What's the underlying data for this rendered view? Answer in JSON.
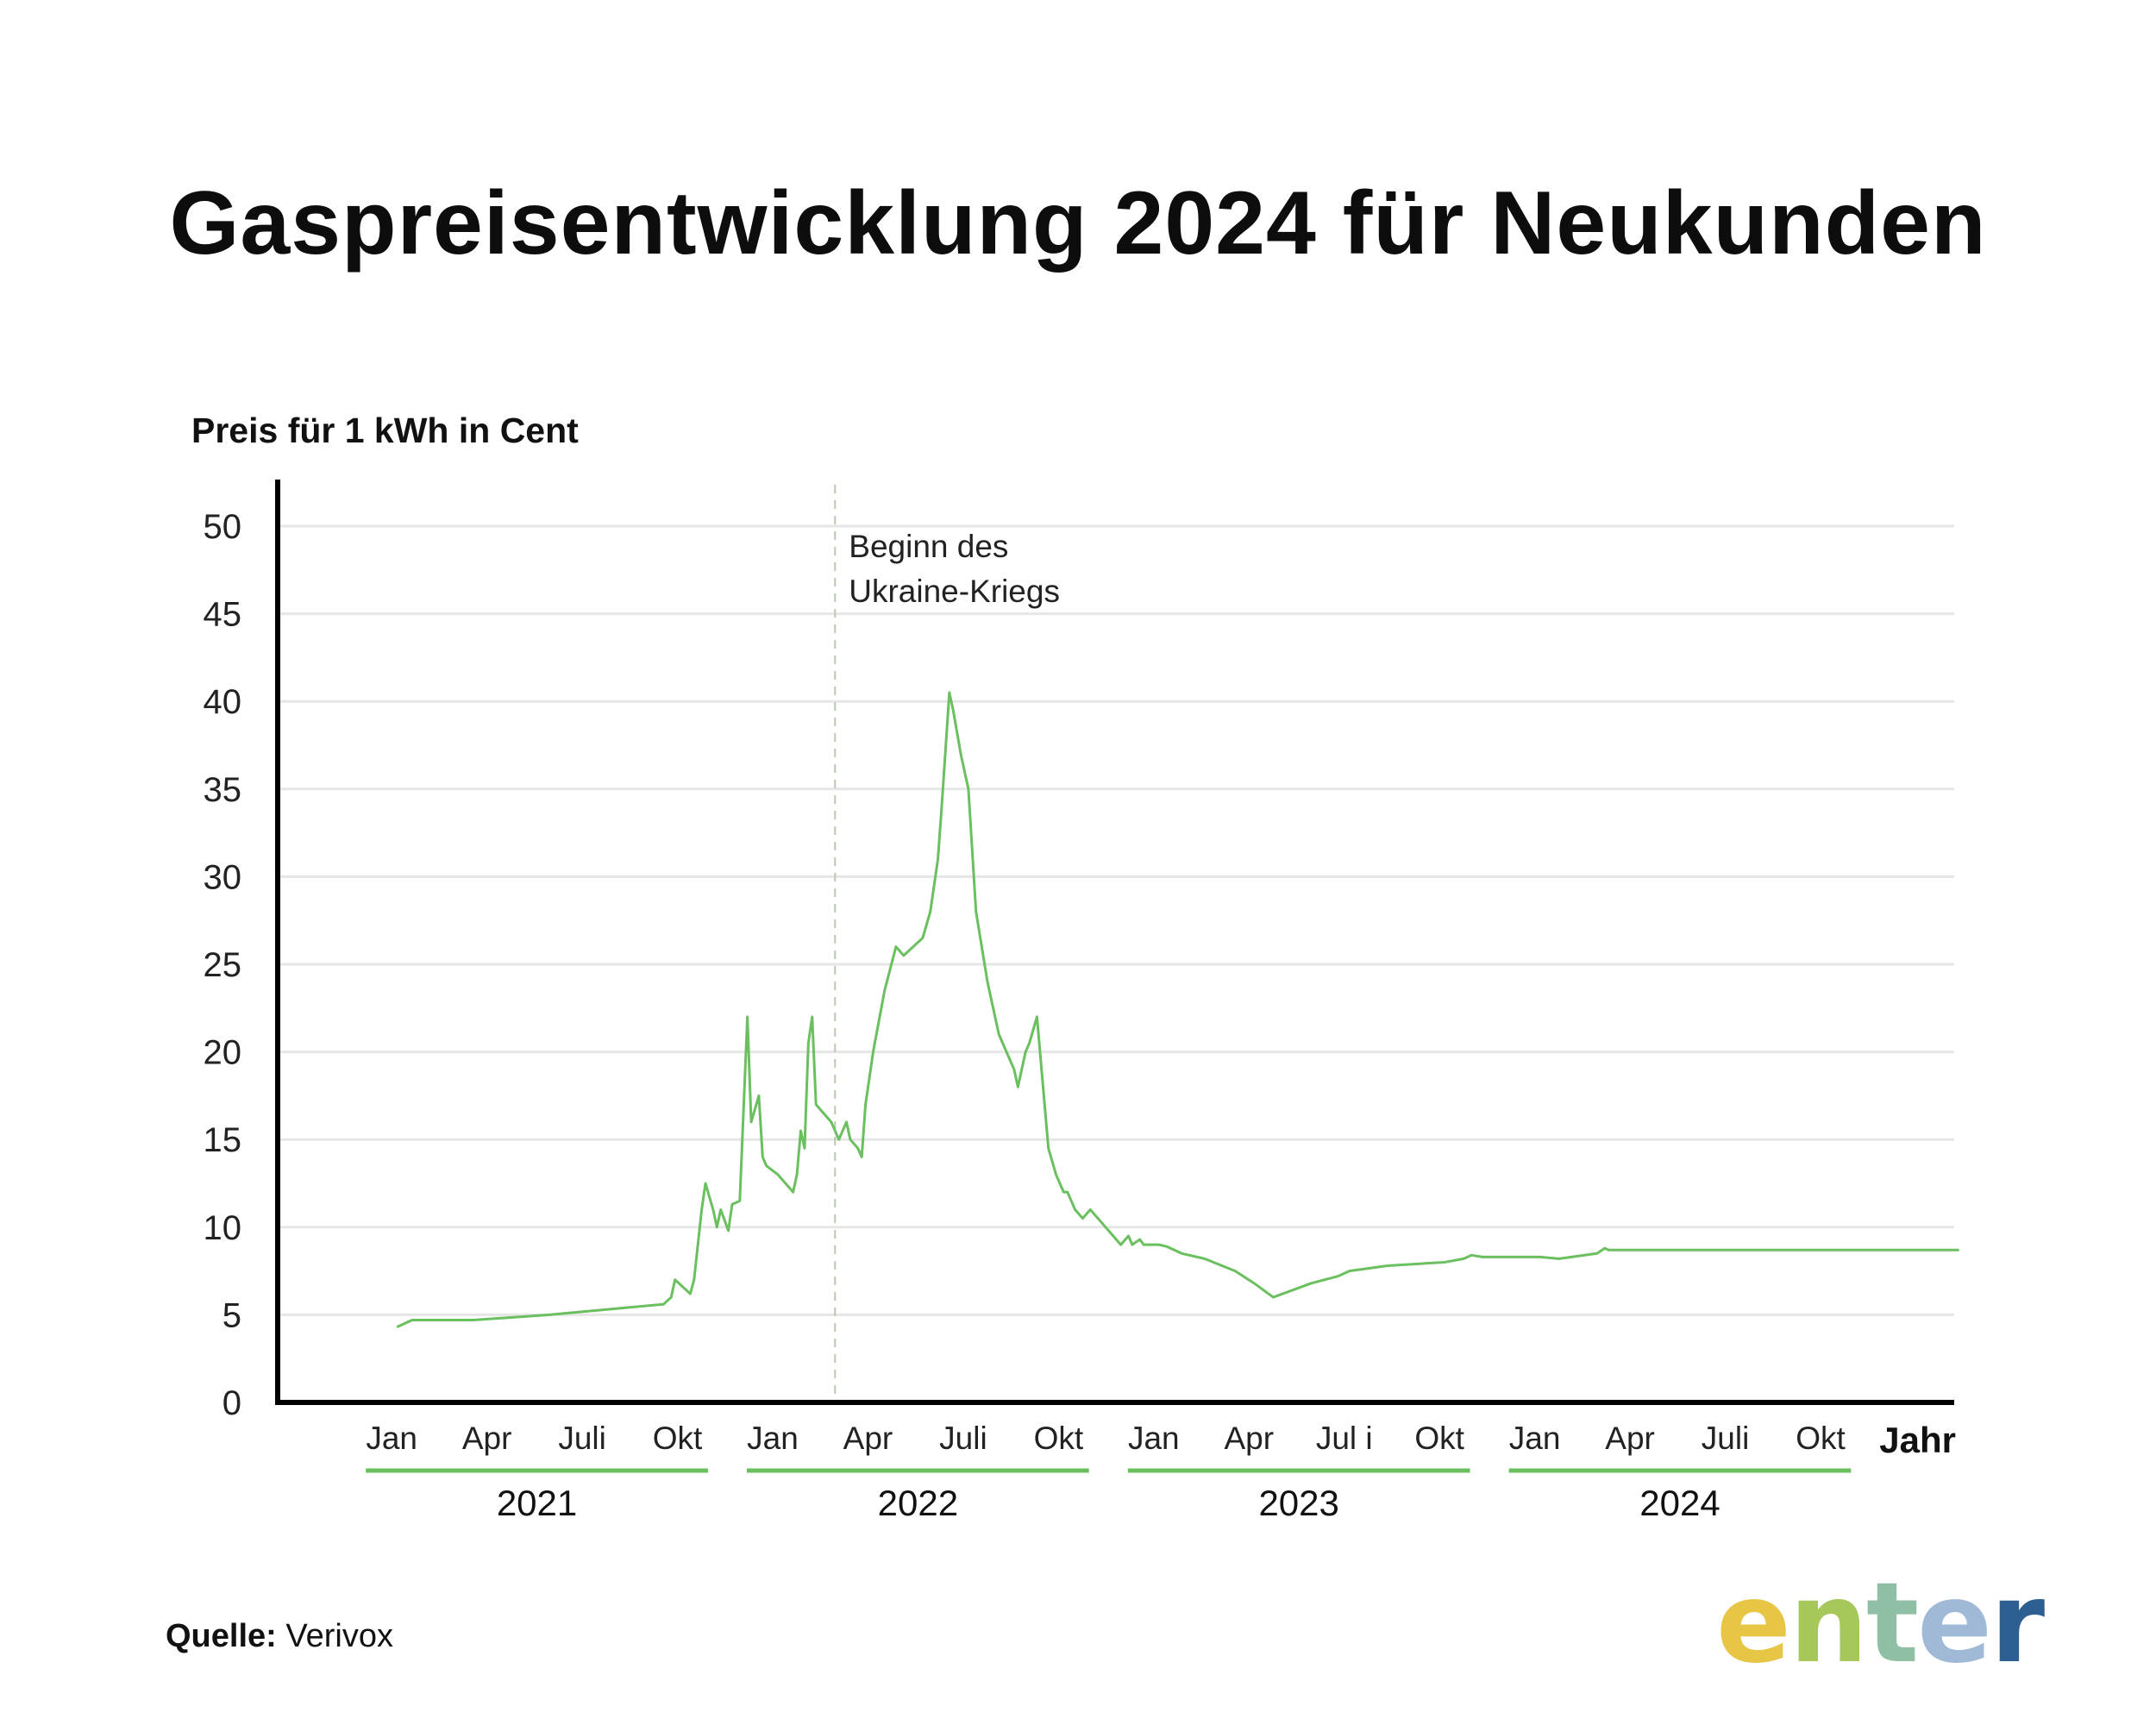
{
  "title": "Gaspreisentwicklung 2024 für Neukunden",
  "source": {
    "label": "Quelle:",
    "value": "Verivox"
  },
  "logo": {
    "text": "enter",
    "letters": [
      "e",
      "n",
      "t",
      "e",
      "r"
    ],
    "colors": [
      "#e7c545",
      "#a6c85a",
      "#8fc0a5",
      "#9fb9d6",
      "#2e5f93"
    ]
  },
  "chart_data": {
    "type": "line",
    "ylabel": "Preis für 1 kWh in Cent",
    "xlabel": "Jahr",
    "ylim": [
      0,
      50
    ],
    "yticks": [
      0,
      5,
      10,
      15,
      20,
      25,
      30,
      35,
      40,
      45,
      50
    ],
    "grid": "horizontal",
    "line_color": "#6abf5e",
    "year_bar_color": "#6abf5e",
    "month_ticks": [
      {
        "label": "Jan",
        "x": 2021.0
      },
      {
        "label": "Apr",
        "x": 2021.25
      },
      {
        "label": "Juli",
        "x": 2021.5
      },
      {
        "label": "Okt",
        "x": 2021.75
      },
      {
        "label": "Jan",
        "x": 2022.0
      },
      {
        "label": "Apr",
        "x": 2022.25
      },
      {
        "label": "Juli",
        "x": 2022.5
      },
      {
        "label": "Okt",
        "x": 2022.75
      },
      {
        "label": "Jan",
        "x": 2023.0
      },
      {
        "label": "Apr",
        "x": 2023.25
      },
      {
        "label": "Jul i",
        "x": 2023.5
      },
      {
        "label": "Okt",
        "x": 2023.75
      },
      {
        "label": "Jan",
        "x": 2024.0
      },
      {
        "label": "Apr",
        "x": 2024.25
      },
      {
        "label": "Juli",
        "x": 2024.5
      },
      {
        "label": "Okt",
        "x": 2024.75
      }
    ],
    "years": [
      {
        "label": "2021",
        "start": 2021.0,
        "end": 2021.83
      },
      {
        "label": "2022",
        "start": 2022.0,
        "end": 2022.83
      },
      {
        "label": "2023",
        "start": 2023.0,
        "end": 2023.83
      },
      {
        "label": "2024",
        "start": 2024.0,
        "end": 2024.83
      }
    ],
    "annotation": {
      "x": 2022.15,
      "lines": [
        "Beginn des",
        "Ukraine-Kriegs"
      ]
    },
    "series": [
      {
        "x": [
          2021.0,
          2021.04,
          2021.2,
          2021.4,
          2021.7,
          2021.72,
          2021.73,
          2021.77,
          2021.78,
          2021.8,
          2021.81,
          2021.83,
          2021.84,
          2021.85,
          2021.87,
          2021.88,
          2021.9,
          2021.92,
          2021.93,
          2021.95,
          2021.96,
          2021.97,
          2022.0,
          2022.02,
          2022.04,
          2022.05,
          2022.06,
          2022.07,
          2022.08,
          2022.09,
          2022.1,
          2022.12,
          2022.14,
          2022.15,
          2022.16,
          2022.17,
          2022.18,
          2022.19,
          2022.21,
          2022.22,
          2022.23,
          2022.25,
          2022.28,
          2022.31,
          2022.33,
          2022.38,
          2022.4,
          2022.42,
          2022.43,
          2022.45,
          2022.46,
          2022.48,
          2022.5,
          2022.52,
          2022.55,
          2022.57,
          2022.58,
          2022.6,
          2022.62,
          2022.63,
          2022.65,
          2022.66,
          2022.68,
          2022.7,
          2022.71,
          2022.73,
          2022.75,
          2022.76,
          2022.77,
          2022.78,
          2022.8,
          2022.82,
          2022.84,
          2022.86,
          2022.88,
          2022.9,
          2022.92,
          2022.93,
          2022.95,
          2022.96,
          2022.98,
          2023.0,
          2023.02,
          2023.06,
          2023.12,
          2023.2,
          2023.25,
          2023.3,
          2023.4,
          2023.47,
          2023.5,
          2023.6,
          2023.75,
          2023.8,
          2023.82,
          2023.85,
          2024.0,
          2024.05,
          2024.15,
          2024.17,
          2024.18,
          2024.2,
          2024.25,
          2024.3,
          2024.4,
          2024.5,
          2024.6,
          2024.7,
          2024.75,
          2024.8,
          2024.9,
          2025.0,
          2025.1
        ],
        "y": [
          4.3,
          4.7,
          4.7,
          5.0,
          5.6,
          6.0,
          7.0,
          6.2,
          7.0,
          11.0,
          12.5,
          11.0,
          10.0,
          11.0,
          9.8,
          11.3,
          11.5,
          22.0,
          16.0,
          17.5,
          14.0,
          13.5,
          13.0,
          12.5,
          12.0,
          13.0,
          15.5,
          14.5,
          20.5,
          22.0,
          17.0,
          16.5,
          16.0,
          15.5,
          15.0,
          15.5,
          16.0,
          15.0,
          14.5,
          14.0,
          17.0,
          20.0,
          23.5,
          26.0,
          25.5,
          26.5,
          28.0,
          31.0,
          34.0,
          40.5,
          39.5,
          37.0,
          35.0,
          28.0,
          24.0,
          22.0,
          21.0,
          20.0,
          19.0,
          18.0,
          20.0,
          20.5,
          22.0,
          17.0,
          14.5,
          13.0,
          12.0,
          12.0,
          11.5,
          11.0,
          10.5,
          11.0,
          10.5,
          10.0,
          9.5,
          9.0,
          9.5,
          9.0,
          9.3,
          9.0,
          9.0,
          9.0,
          8.9,
          8.5,
          8.2,
          7.5,
          6.8,
          6.0,
          6.8,
          7.2,
          7.5,
          7.8,
          8.0,
          8.2,
          8.4,
          8.3,
          8.3,
          8.2,
          8.5,
          8.8,
          8.7,
          8.7,
          8.7,
          8.7,
          8.7,
          8.7,
          8.7,
          8.7,
          8.7,
          8.7,
          8.7,
          8.7,
          8.7
        ]
      }
    ]
  }
}
